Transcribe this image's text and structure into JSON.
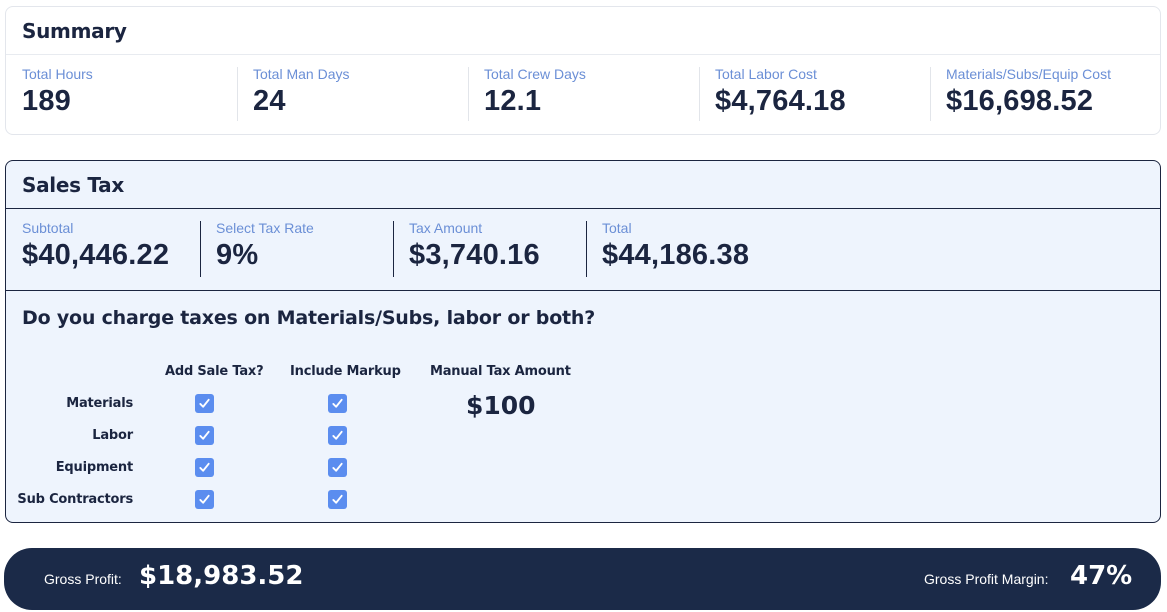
{
  "summary": {
    "title": "Summary",
    "stats": [
      {
        "label": "Total Hours",
        "value": "189"
      },
      {
        "label": "Total Man Days",
        "value": "24"
      },
      {
        "label": "Total Crew Days",
        "value": "12.1"
      },
      {
        "label": "Total Labor Cost",
        "value": "$4,764.18"
      },
      {
        "label": "Materials/Subs/Equip Cost",
        "value": "$16,698.52"
      }
    ]
  },
  "sales_tax": {
    "title": "Sales Tax",
    "stats": [
      {
        "label": "Subtotal",
        "value": "$40,446.22"
      },
      {
        "label": "Select Tax Rate",
        "value": "9%"
      },
      {
        "label": "Tax Amount",
        "value": "$3,740.16"
      },
      {
        "label": "Total",
        "value": "$44,186.38"
      }
    ],
    "question": "Do you charge taxes on Materials/Subs, labor or both?",
    "columns": {
      "add_sale_tax": "Add Sale Tax?",
      "include_markup": "Include Markup",
      "manual_tax_amount": "Manual Tax Amount"
    },
    "rows": [
      {
        "label": "Materials",
        "add_sale_tax": true,
        "include_markup": true
      },
      {
        "label": "Labor",
        "add_sale_tax": true,
        "include_markup": true
      },
      {
        "label": "Equipment",
        "add_sale_tax": true,
        "include_markup": true
      },
      {
        "label": "Sub Contractors",
        "add_sale_tax": true,
        "include_markup": true
      }
    ],
    "manual_tax_value": "$100"
  },
  "profit": {
    "gross_profit_label": "Gross Profit:",
    "gross_profit_value": "$18,983.52",
    "margin_label": "Gross Profit Margin:",
    "margin_value": "47%"
  },
  "colors": {
    "navy": "#1b2540",
    "accent_blue": "#5b8def",
    "label_blue": "#6b8fd6",
    "panel_bg": "#eef4fd"
  },
  "icons": {
    "checkbox": "check-icon"
  }
}
